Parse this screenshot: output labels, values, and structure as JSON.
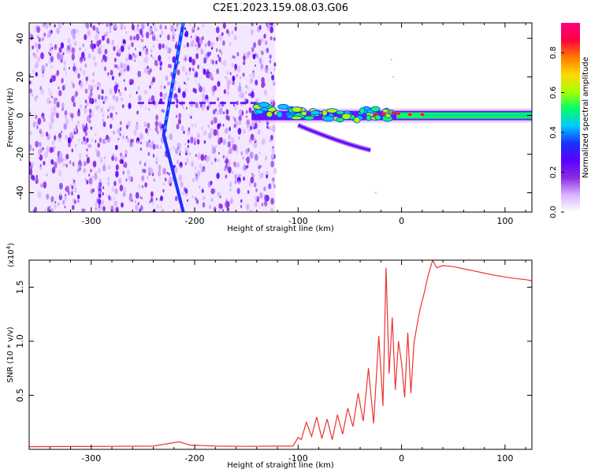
{
  "figure": {
    "title": "C2E1.2023.159.08.03.G06"
  },
  "colors": {
    "spec_bg": "#ffffff",
    "snr_line": "#ee3333",
    "colormap": [
      "#ffffff",
      "#d9b3ff",
      "#8a2be2",
      "#5a00ff",
      "#1a30ff",
      "#00c8ff",
      "#00ff6a",
      "#a8ff00",
      "#ffd800",
      "#ff7a00",
      "#ff0040",
      "#ff007f"
    ]
  },
  "chart_data": [
    {
      "type": "heatmap",
      "title": "C2E1.2023.159.08.03.G06",
      "xlabel": "Height of straight line (km)",
      "ylabel": "Frequency (Hz)",
      "xlim": [
        -360,
        126
      ],
      "ylim": [
        -50,
        48
      ],
      "xticks": [
        -300,
        -200,
        -100,
        0,
        100
      ],
      "xtick_labels": [
        "-300",
        "-200",
        "-100",
        "0",
        "100"
      ],
      "yticks": [
        -40,
        -20,
        0,
        20,
        40
      ],
      "ytick_labels": [
        "-40",
        "-20",
        "0",
        "20",
        "40"
      ],
      "noise_region_x": [
        -360,
        -122
      ],
      "features": {
        "vertical_track": {
          "x_top": -211,
          "y_top": 48,
          "x_bottom": -230,
          "y_bottom": -10,
          "x_bottom2": -211,
          "y_bottom2": -50
        },
        "main_band": {
          "x_start": -145,
          "x_end": 126,
          "y": 0,
          "peak_amplitude": 0.95
        },
        "lower_branch": {
          "x_start": -100,
          "x_end": -30,
          "y_start": -5,
          "y_end": -18
        }
      },
      "colorbar": {
        "label": "Normalized spectral amplitude",
        "range": [
          0.0,
          0.95
        ],
        "ticks": [
          0.0,
          0.2,
          0.4,
          0.6,
          0.8
        ],
        "tick_labels": [
          "0.0",
          "0.2",
          "0.4",
          "0.6",
          "0.8"
        ]
      }
    },
    {
      "type": "line",
      "xlabel": "Height of straight line (km)",
      "ylabel": "SNR (10 * v/v)",
      "scale_note": "(x10",
      "scale_exp": "4",
      "scale_close": ")",
      "xlim": [
        -360,
        126
      ],
      "ylim": [
        0,
        17500
      ],
      "xticks": [
        -300,
        -200,
        -100,
        0,
        100
      ],
      "xtick_labels": [
        "-300",
        "-200",
        "-100",
        "0",
        "100"
      ],
      "yticks": [
        5000,
        10000,
        15000
      ],
      "ytick_labels": [
        "0.5",
        "1.0",
        "1.5"
      ],
      "series": [
        {
          "x": [
            -360,
            -320,
            -280,
            -240,
            -215,
            -205,
            -180,
            -150,
            -120,
            -105,
            -100,
            -97,
            -92,
            -87,
            -82,
            -77,
            -72,
            -67,
            -62,
            -57,
            -52,
            -47,
            -42,
            -37,
            -32,
            -27,
            -22,
            -18,
            -15,
            -12,
            -9,
            -6,
            -3,
            0,
            3,
            6,
            9,
            12,
            15,
            18,
            22,
            26,
            30,
            34,
            40,
            50,
            60,
            70,
            80,
            90,
            100,
            110,
            120,
            126
          ],
          "y": [
            250,
            260,
            280,
            300,
            700,
            400,
            300,
            280,
            300,
            300,
            1100,
            900,
            2500,
            1200,
            3000,
            1000,
            2800,
            900,
            3200,
            1400,
            3800,
            2100,
            5200,
            2600,
            7500,
            2400,
            10500,
            4000,
            16800,
            7000,
            12200,
            5500,
            10000,
            8000,
            4800,
            10800,
            5200,
            9800,
            11500,
            13000,
            14500,
            16200,
            17500,
            16800,
            17000,
            16900,
            16700,
            16500,
            16300,
            16100,
            15950,
            15800,
            15700,
            15600
          ]
        }
      ]
    }
  ]
}
